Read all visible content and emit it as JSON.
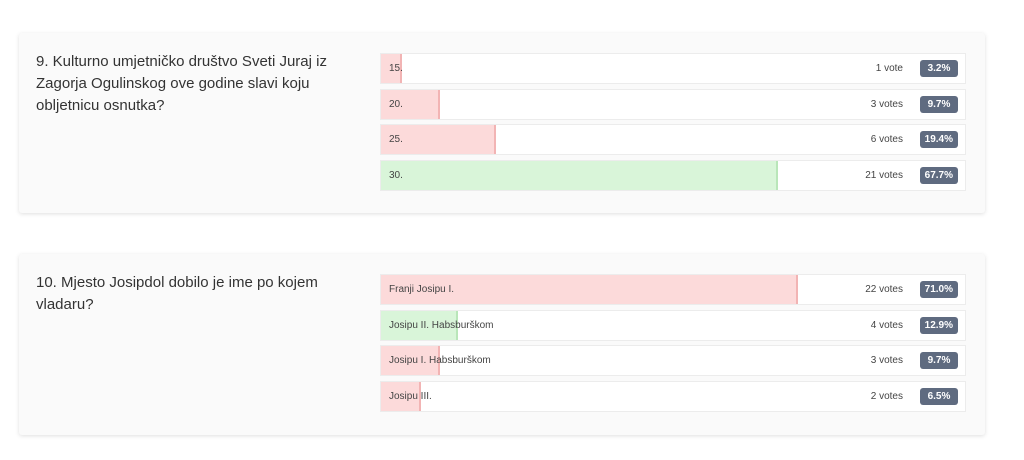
{
  "q9": {
    "question": "9. Kulturno umjetničko društvo Sveti Juraj iz Zagorja Ogulinskog ove godine slavi koju obljetnicu osnutka?",
    "answers": [
      {
        "label": "15.",
        "votes": "1 vote",
        "percent": "3.2%",
        "fraction": 0.032,
        "correct": false
      },
      {
        "label": "20.",
        "votes": "3 votes",
        "percent": "9.7%",
        "fraction": 0.097,
        "correct": false
      },
      {
        "label": "25.",
        "votes": "6 votes",
        "percent": "19.4%",
        "fraction": 0.194,
        "correct": false
      },
      {
        "label": "30.",
        "votes": "21 votes",
        "percent": "67.7%",
        "fraction": 0.677,
        "correct": true
      }
    ]
  },
  "q10": {
    "question": "10. Mjesto Josipdol dobilo je ime po kojem vladaru?",
    "answers": [
      {
        "label": "Franji Josipu I.",
        "votes": "22 votes",
        "percent": "71.0%",
        "fraction": 0.71,
        "correct": false
      },
      {
        "label": "Josipu II. Habsburškom",
        "votes": "4 votes",
        "percent": "12.9%",
        "fraction": 0.129,
        "correct": true
      },
      {
        "label": "Josipu I. Habsburškom",
        "votes": "3 votes",
        "percent": "9.7%",
        "fraction": 0.097,
        "correct": false
      },
      {
        "label": "Josipu III.",
        "votes": "2 votes",
        "percent": "6.5%",
        "fraction": 0.065,
        "correct": false
      }
    ]
  },
  "colors": {
    "wrong_bar": "#fcdada",
    "correct_bar": "#d9f5d9",
    "percent_badge": "#5f6b80"
  }
}
